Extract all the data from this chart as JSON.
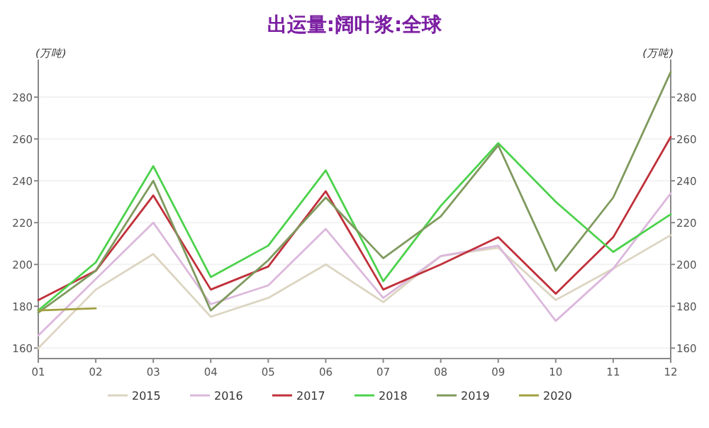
{
  "chart_data": {
    "type": "line",
    "title": "出运量:阔叶浆:全球",
    "ylabel": "(万吨)",
    "y2label": "(万吨)",
    "categories": [
      "01",
      "02",
      "03",
      "04",
      "05",
      "06",
      "07",
      "08",
      "09",
      "10",
      "11",
      "12"
    ],
    "series": [
      {
        "name": "2015",
        "color": "#dcd5c2",
        "values": [
          160,
          188,
          205,
          175,
          184,
          200,
          182,
          204,
          208,
          183,
          198,
          214
        ]
      },
      {
        "name": "2016",
        "color": "#dcb8dc",
        "values": [
          166,
          193,
          220,
          181,
          190,
          217,
          184,
          204,
          209,
          173,
          198,
          234
        ]
      },
      {
        "name": "2017",
        "color": "#c0303a",
        "values": [
          183,
          197,
          233,
          188,
          199,
          235,
          188,
          200,
          213,
          186,
          213,
          261
        ]
      },
      {
        "name": "2018",
        "color": "#4cd24c",
        "values": [
          178,
          201,
          247,
          194,
          209,
          245,
          192,
          228,
          258,
          230,
          206,
          224
        ]
      },
      {
        "name": "2019",
        "color": "#7f9a5e",
        "values": [
          177,
          197,
          240,
          178,
          202,
          232,
          203,
          223,
          257,
          197,
          232,
          292
        ]
      },
      {
        "name": "2020",
        "color": "#a0a040",
        "values": [
          178,
          179,
          null,
          null,
          null,
          null,
          null,
          null,
          null,
          null,
          null,
          null
        ]
      }
    ],
    "ylim": [
      155,
      298
    ],
    "yticks": [
      160,
      180,
      200,
      220,
      240,
      260,
      280
    ],
    "y2lim": [
      155,
      298
    ],
    "y2ticks": [
      160,
      180,
      200,
      220,
      240,
      260,
      280
    ],
    "grid": "y",
    "legend": "bottom",
    "marker": "none",
    "line_style": "solid"
  }
}
